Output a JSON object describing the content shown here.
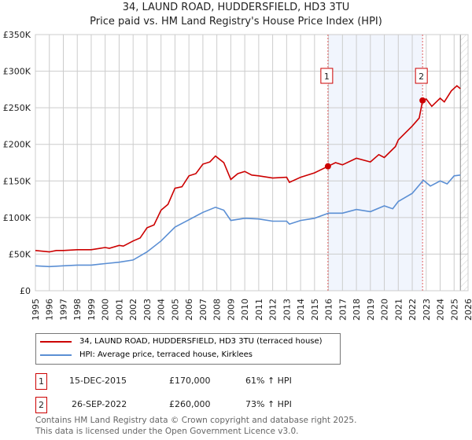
{
  "chart_data": {
    "type": "line",
    "title": "34, LAUND ROAD, HUDDERSFIELD, HD3 3TU",
    "subtitle": "Price paid vs. HM Land Registry's House Price Index (HPI)",
    "xlim": [
      1995,
      2026
    ],
    "ylim": [
      0,
      350000
    ],
    "x_ticks": [
      "1995",
      "1996",
      "1997",
      "1998",
      "1999",
      "2000",
      "2001",
      "2002",
      "2003",
      "2004",
      "2005",
      "2006",
      "2007",
      "2008",
      "2009",
      "2010",
      "2011",
      "2012",
      "2013",
      "2014",
      "2015",
      "2016",
      "2017",
      "2018",
      "2019",
      "2020",
      "2021",
      "2022",
      "2023",
      "2024",
      "2025",
      "2026"
    ],
    "y_ticks": [
      {
        "value": 0,
        "label": "£0"
      },
      {
        "value": 50000,
        "label": "£50K"
      },
      {
        "value": 100000,
        "label": "£100K"
      },
      {
        "value": 150000,
        "label": "£150K"
      },
      {
        "value": 200000,
        "label": "£200K"
      },
      {
        "value": 250000,
        "label": "£250K"
      },
      {
        "value": 300000,
        "label": "£300K"
      },
      {
        "value": 350000,
        "label": "£350K"
      }
    ],
    "grid": true,
    "data_end": 2025.45,
    "shaded_range": [
      2015.96,
      2022.74
    ],
    "series": [
      {
        "name": "34, LAUND ROAD, HUDDERSFIELD, HD3 3TU (terraced house)",
        "color": "#cc0000",
        "x": [
          1995,
          1996,
          1996.5,
          1997,
          1998,
          1999,
          2000,
          2000.3,
          2001,
          2001.3,
          2002,
          2002.5,
          2003,
          2003.5,
          2004,
          2004.5,
          2005,
          2005.5,
          2006,
          2006.5,
          2007,
          2007.5,
          2007.9,
          2008.5,
          2009,
          2009.5,
          2010,
          2010.5,
          2011,
          2012,
          2013,
          2013.2,
          2014,
          2015,
          2015.96,
          2016.5,
          2017,
          2018,
          2019,
          2019.6,
          2020,
          2020.8,
          2021,
          2022,
          2022.5,
          2022.74,
          2023,
          2023.4,
          2024,
          2024.3,
          2024.8,
          2025.2,
          2025.45
        ],
        "y": [
          55000,
          53000,
          55000,
          55000,
          56000,
          56000,
          59000,
          58000,
          62000,
          61000,
          68000,
          72000,
          86000,
          90000,
          110000,
          118000,
          140000,
          142000,
          157000,
          160000,
          173000,
          176000,
          184000,
          175000,
          152000,
          160000,
          163000,
          158000,
          157000,
          154000,
          155000,
          148000,
          155000,
          161000,
          170000,
          175000,
          172000,
          181000,
          176000,
          186000,
          182000,
          197000,
          206000,
          225000,
          236000,
          260000,
          262000,
          252000,
          263000,
          258000,
          273000,
          280000,
          276000
        ]
      },
      {
        "name": "HPI: Average price, terraced house, Kirklees",
        "color": "#5b8fd4",
        "x": [
          1995,
          1996,
          1997,
          1998,
          1999,
          2000,
          2001,
          2002,
          2003,
          2004,
          2005,
          2006,
          2007,
          2007.9,
          2008.5,
          2009,
          2010,
          2011,
          2012,
          2013,
          2013.2,
          2014,
          2015,
          2016,
          2017,
          2018,
          2019,
          2020,
          2020.6,
          2021,
          2022,
          2022.8,
          2023.3,
          2024,
          2024.5,
          2025,
          2025.45
        ],
        "y": [
          34000,
          33000,
          34000,
          35000,
          35000,
          37000,
          39000,
          42000,
          53000,
          68000,
          87000,
          97000,
          107000,
          114000,
          110000,
          96000,
          99000,
          98000,
          95000,
          95000,
          91000,
          96000,
          99000,
          106000,
          106000,
          111000,
          108000,
          116000,
          112000,
          122000,
          133000,
          151000,
          143000,
          150000,
          146000,
          157000,
          158000
        ]
      }
    ],
    "sales": [
      {
        "label": "1",
        "x": 2015.96,
        "price": 170000,
        "date": "15-DEC-2015",
        "price_text": "£170,000",
        "hpi": "61% ↑ HPI"
      },
      {
        "label": "2",
        "x": 2022.74,
        "price": 260000,
        "date": "26-SEP-2022",
        "price_text": "£260,000",
        "hpi": "73% ↑ HPI"
      }
    ]
  },
  "footer": {
    "line1": "Contains HM Land Registry data © Crown copyright and database right 2025.",
    "line2": "This data is licensed under the Open Government Licence v3.0."
  }
}
